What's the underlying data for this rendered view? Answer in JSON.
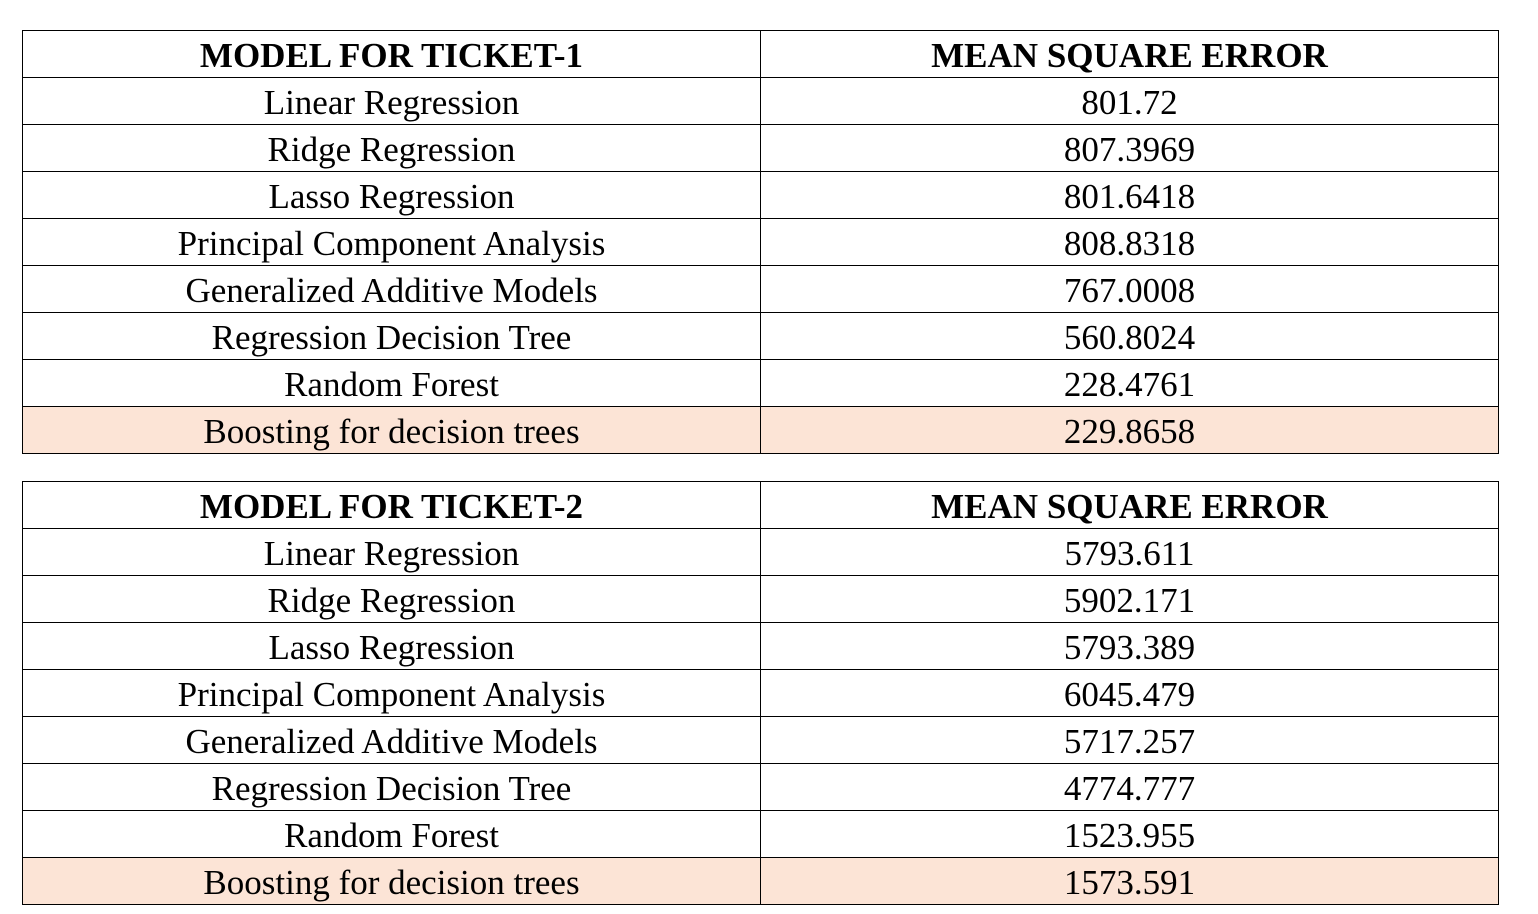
{
  "highlight_color": "#fce4d6",
  "tables": [
    {
      "headers": [
        "MODEL FOR TICKET-1",
        "MEAN SQUARE ERROR"
      ],
      "rows": [
        {
          "model": "Linear Regression",
          "mse": "801.72",
          "highlighted": false
        },
        {
          "model": "Ridge Regression",
          "mse": "807.3969",
          "highlighted": false
        },
        {
          "model": "Lasso Regression",
          "mse": "801.6418",
          "highlighted": false
        },
        {
          "model": "Principal Component Analysis",
          "mse": "808.8318",
          "highlighted": false
        },
        {
          "model": "Generalized Additive Models",
          "mse": "767.0008",
          "highlighted": false
        },
        {
          "model": "Regression Decision Tree",
          "mse": "560.8024",
          "highlighted": false
        },
        {
          "model": "Random Forest",
          "mse": "228.4761",
          "highlighted": false
        },
        {
          "model": "Boosting for decision trees",
          "mse": "229.8658",
          "highlighted": true
        }
      ]
    },
    {
      "headers": [
        "MODEL FOR TICKET-2",
        "MEAN SQUARE ERROR"
      ],
      "rows": [
        {
          "model": "Linear Regression",
          "mse": "5793.611",
          "highlighted": false
        },
        {
          "model": "Ridge Regression",
          "mse": "5902.171",
          "highlighted": false
        },
        {
          "model": "Lasso Regression",
          "mse": "5793.389",
          "highlighted": false
        },
        {
          "model": "Principal Component Analysis",
          "mse": "6045.479",
          "highlighted": false
        },
        {
          "model": "Generalized Additive Models",
          "mse": "5717.257",
          "highlighted": false
        },
        {
          "model": "Regression Decision Tree",
          "mse": "4774.777",
          "highlighted": false
        },
        {
          "model": "Random Forest",
          "mse": "1523.955",
          "highlighted": false
        },
        {
          "model": "Boosting for decision trees",
          "mse": "1573.591",
          "highlighted": true
        }
      ]
    }
  ]
}
